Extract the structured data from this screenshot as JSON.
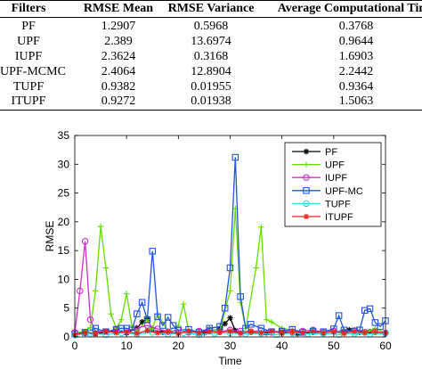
{
  "table": {
    "headers": [
      "Filters",
      "RMSE Mean",
      "RMSE Variance",
      "Average Computational Time"
    ],
    "rows": [
      [
        "PF",
        "1.2907",
        "0.5968",
        "0.3768"
      ],
      [
        "UPF",
        "2.389",
        "13.6974",
        "0.9644"
      ],
      [
        "IUPF",
        "2.3624",
        "0.3168",
        "1.6903"
      ],
      [
        "UPF-MCMC",
        "2.4064",
        "12.8904",
        "2.2442"
      ],
      [
        "TUPF",
        "0.9382",
        "0.01955",
        "0.9364"
      ],
      [
        "ITUPF",
        "0.9272",
        "0.01938",
        "1.5063"
      ]
    ]
  },
  "chart_data": {
    "type": "line",
    "xlabel": "Time",
    "ylabel": "RMSE",
    "xlim": [
      0,
      60
    ],
    "ylim": [
      0,
      35
    ],
    "xticks": [
      0,
      10,
      20,
      30,
      40,
      50,
      60
    ],
    "yticks": [
      0,
      5,
      10,
      15,
      20,
      25,
      30,
      35
    ],
    "legend_position": "top-right",
    "series": [
      {
        "name": "PF",
        "color": "#000000",
        "marker": "star",
        "points": [
          [
            0,
            0.3
          ],
          [
            2,
            0.6
          ],
          [
            4,
            0.5
          ],
          [
            6,
            0.8
          ],
          [
            8,
            1.0
          ],
          [
            10,
            0.7
          ],
          [
            12,
            1.5
          ],
          [
            13,
            2.6
          ],
          [
            14,
            3.2
          ],
          [
            15,
            1.2
          ],
          [
            17,
            0.8
          ],
          [
            20,
            0.6
          ],
          [
            22,
            0.9
          ],
          [
            25,
            0.7
          ],
          [
            28,
            1.4
          ],
          [
            29,
            2.3
          ],
          [
            30,
            3.3
          ],
          [
            31,
            1.1
          ],
          [
            34,
            0.8
          ],
          [
            37,
            0.7
          ],
          [
            40,
            0.9
          ],
          [
            43,
            0.6
          ],
          [
            46,
            0.8
          ],
          [
            50,
            0.9
          ],
          [
            53,
            1.2
          ],
          [
            55,
            0.8
          ],
          [
            57,
            0.9
          ],
          [
            60,
            0.7
          ]
        ]
      },
      {
        "name": "UPF",
        "color": "#66dd00",
        "marker": "plus",
        "points": [
          [
            0,
            0.4
          ],
          [
            3,
            1.6
          ],
          [
            4,
            8.0
          ],
          [
            5,
            19.2
          ],
          [
            6,
            12.0
          ],
          [
            7,
            4.0
          ],
          [
            8,
            1.5
          ],
          [
            9,
            3.0
          ],
          [
            10,
            7.5
          ],
          [
            11,
            2.0
          ],
          [
            12,
            1.0
          ],
          [
            14,
            3.0
          ],
          [
            15,
            1.5
          ],
          [
            16,
            4.0
          ],
          [
            18,
            1.0
          ],
          [
            20,
            2.0
          ],
          [
            21,
            5.7
          ],
          [
            22,
            1.0
          ],
          [
            24,
            0.8
          ],
          [
            26,
            1.5
          ],
          [
            28,
            1.0
          ],
          [
            30,
            8.0
          ],
          [
            31,
            22.3
          ],
          [
            32,
            6.0
          ],
          [
            33,
            1.5
          ],
          [
            35,
            12.0
          ],
          [
            36,
            19.1
          ],
          [
            37,
            3.0
          ],
          [
            38,
            2.6
          ],
          [
            40,
            1.5
          ],
          [
            42,
            1.2
          ],
          [
            44,
            0.9
          ],
          [
            46,
            1.0
          ],
          [
            48,
            0.8
          ],
          [
            50,
            1.2
          ],
          [
            52,
            0.7
          ],
          [
            54,
            0.9
          ],
          [
            56,
            0.8
          ],
          [
            58,
            1.5
          ],
          [
            60,
            0.7
          ]
        ]
      },
      {
        "name": "IUPF",
        "color": "#cc33cc",
        "marker": "circle",
        "points": [
          [
            0,
            0.8
          ],
          [
            1,
            8.0
          ],
          [
            2,
            16.6
          ],
          [
            3,
            3.0
          ],
          [
            4,
            1.0
          ],
          [
            6,
            0.9
          ],
          [
            8,
            1.2
          ],
          [
            10,
            1.0
          ],
          [
            12,
            1.5
          ],
          [
            14,
            2.0
          ],
          [
            16,
            1.4
          ],
          [
            18,
            0.9
          ],
          [
            20,
            1.2
          ],
          [
            22,
            0.8
          ],
          [
            24,
            1.0
          ],
          [
            26,
            1.2
          ],
          [
            28,
            0.9
          ],
          [
            30,
            1.2
          ],
          [
            32,
            1.0
          ],
          [
            34,
            0.9
          ],
          [
            36,
            1.1
          ],
          [
            38,
            0.8
          ],
          [
            40,
            1.0
          ],
          [
            42,
            0.9
          ],
          [
            44,
            1.0
          ],
          [
            46,
            1.2
          ],
          [
            48,
            0.8
          ],
          [
            50,
            1.0
          ],
          [
            52,
            0.9
          ],
          [
            54,
            1.1
          ],
          [
            56,
            0.8
          ],
          [
            58,
            0.9
          ],
          [
            60,
            0.7
          ]
        ]
      },
      {
        "name": "UPF-MC",
        "color": "#2255dd",
        "marker": "square",
        "points": [
          [
            0,
            0.5
          ],
          [
            2,
            0.8
          ],
          [
            4,
            1.5
          ],
          [
            6,
            0.9
          ],
          [
            8,
            1.3
          ],
          [
            9,
            1.5
          ],
          [
            10,
            1.5
          ],
          [
            11,
            1.2
          ],
          [
            12,
            4.0
          ],
          [
            13,
            6.0
          ],
          [
            14,
            3.0
          ],
          [
            15,
            14.9
          ],
          [
            16,
            3.5
          ],
          [
            17,
            2.0
          ],
          [
            18,
            3.4
          ],
          [
            19,
            2.0
          ],
          [
            20,
            1.2
          ],
          [
            22,
            1.3
          ],
          [
            24,
            0.8
          ],
          [
            26,
            1.5
          ],
          [
            28,
            1.8
          ],
          [
            29,
            5.0
          ],
          [
            30,
            12.0
          ],
          [
            31,
            31.2
          ],
          [
            32,
            7.0
          ],
          [
            33,
            1.5
          ],
          [
            34,
            2.2
          ],
          [
            36,
            1.5
          ],
          [
            38,
            0.9
          ],
          [
            40,
            1.0
          ],
          [
            42,
            1.3
          ],
          [
            44,
            0.8
          ],
          [
            46,
            1.0
          ],
          [
            48,
            0.9
          ],
          [
            50,
            1.4
          ],
          [
            51,
            3.7
          ],
          [
            52,
            1.2
          ],
          [
            54,
            1.0
          ],
          [
            55,
            1.2
          ],
          [
            56,
            4.6
          ],
          [
            57,
            4.9
          ],
          [
            58,
            2.5
          ],
          [
            59,
            1.8
          ],
          [
            60,
            2.8
          ]
        ]
      },
      {
        "name": "TUPF",
        "color": "#33dddd",
        "marker": "circle",
        "points": [
          [
            0,
            0.3
          ],
          [
            3,
            0.6
          ],
          [
            6,
            0.4
          ],
          [
            9,
            0.7
          ],
          [
            12,
            0.5
          ],
          [
            15,
            0.8
          ],
          [
            18,
            0.5
          ],
          [
            21,
            0.7
          ],
          [
            24,
            0.4
          ],
          [
            27,
            0.6
          ],
          [
            30,
            0.7
          ],
          [
            33,
            0.5
          ],
          [
            36,
            0.6
          ],
          [
            39,
            0.4
          ],
          [
            42,
            0.7
          ],
          [
            45,
            0.5
          ],
          [
            48,
            0.6
          ],
          [
            51,
            0.4
          ],
          [
            54,
            0.6
          ],
          [
            57,
            0.5
          ],
          [
            60,
            0.6
          ]
        ]
      },
      {
        "name": "ITUPF",
        "color": "#ee2222",
        "marker": "star",
        "points": [
          [
            0,
            0.4
          ],
          [
            2,
            0.8
          ],
          [
            4,
            0.6
          ],
          [
            6,
            1.0
          ],
          [
            8,
            0.7
          ],
          [
            10,
            0.9
          ],
          [
            12,
            0.6
          ],
          [
            14,
            1.1
          ],
          [
            16,
            0.7
          ],
          [
            18,
            0.9
          ],
          [
            20,
            0.6
          ],
          [
            22,
            1.0
          ],
          [
            24,
            0.7
          ],
          [
            26,
            0.9
          ],
          [
            28,
            0.8
          ],
          [
            30,
            1.0
          ],
          [
            32,
            0.6
          ],
          [
            34,
            0.9
          ],
          [
            36,
            0.7
          ],
          [
            38,
            1.0
          ],
          [
            40,
            0.6
          ],
          [
            42,
            0.9
          ],
          [
            44,
            0.7
          ],
          [
            46,
            1.0
          ],
          [
            48,
            0.7
          ],
          [
            50,
            0.9
          ],
          [
            52,
            0.6
          ],
          [
            54,
            1.0
          ],
          [
            56,
            0.8
          ],
          [
            58,
            0.9
          ],
          [
            60,
            0.7
          ]
        ]
      }
    ]
  }
}
